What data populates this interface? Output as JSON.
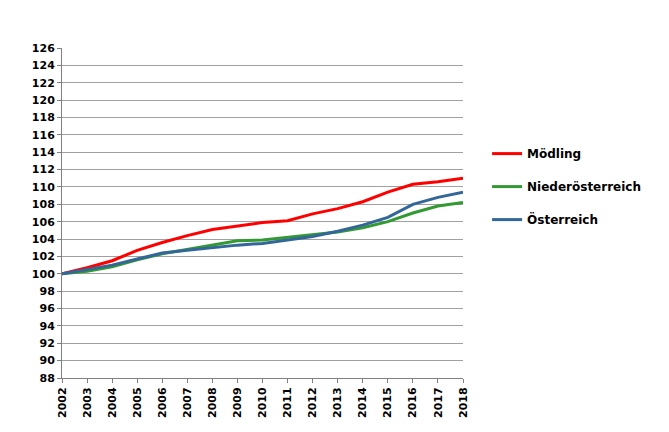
{
  "chart_data": {
    "type": "line",
    "x": [
      2002,
      2003,
      2004,
      2005,
      2006,
      2007,
      2008,
      2009,
      2010,
      2011,
      2012,
      2013,
      2014,
      2015,
      2016,
      2017,
      2018
    ],
    "series": [
      {
        "name": "Mödling",
        "color": "#ff0000",
        "values": [
          100,
          100.7,
          101.5,
          102.7,
          103.6,
          104.4,
          105.1,
          105.5,
          105.9,
          106.1,
          106.9,
          107.5,
          108.3,
          109.4,
          110.3,
          110.6,
          111.0
        ]
      },
      {
        "name": "Niederösterreich",
        "color": "#339933",
        "values": [
          100,
          100.3,
          100.8,
          101.6,
          102.3,
          102.8,
          103.3,
          103.8,
          103.9,
          104.2,
          104.5,
          104.8,
          105.3,
          106.0,
          107.0,
          107.8,
          108.2
        ]
      },
      {
        "name": "Österreich",
        "color": "#336699",
        "values": [
          100,
          100.5,
          101.0,
          101.7,
          102.4,
          102.7,
          103.0,
          103.3,
          103.5,
          103.9,
          104.3,
          104.9,
          105.6,
          106.5,
          108.0,
          108.8,
          109.4
        ]
      }
    ],
    "xlim": [
      2002,
      2018
    ],
    "xticks": [
      2002,
      2003,
      2004,
      2005,
      2006,
      2007,
      2008,
      2009,
      2010,
      2011,
      2012,
      2013,
      2014,
      2015,
      2016,
      2017,
      2018
    ],
    "ylim": [
      88,
      126
    ],
    "yticks": [
      88,
      90,
      92,
      94,
      96,
      98,
      100,
      102,
      104,
      106,
      108,
      110,
      112,
      114,
      116,
      118,
      120,
      122,
      124,
      126
    ],
    "grid": true,
    "legend": "right"
  }
}
